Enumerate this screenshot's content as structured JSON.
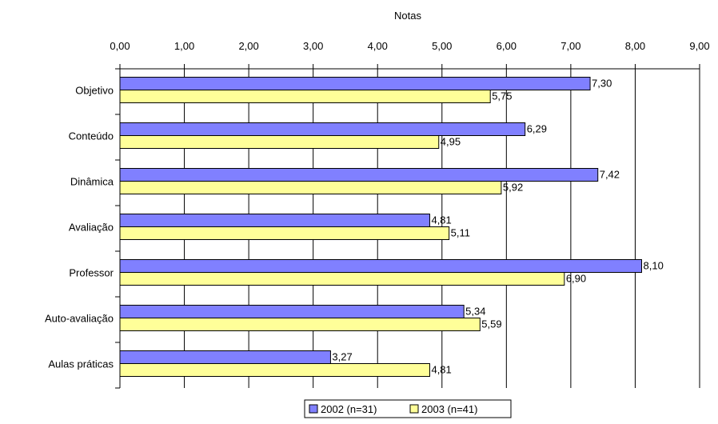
{
  "chart_data": {
    "type": "bar",
    "orientation": "horizontal",
    "title": "",
    "xlabel": "Notas",
    "ylabel": "",
    "xlim": [
      0,
      9
    ],
    "x_ticks": [
      "0,00",
      "1,00",
      "2,00",
      "3,00",
      "4,00",
      "5,00",
      "6,00",
      "7,00",
      "8,00",
      "9,00"
    ],
    "categories": [
      "Objetivo",
      "Conteúdo",
      "Dinâmica",
      "Avaliação",
      "Professor",
      "Auto-avaliação",
      "Aulas práticas"
    ],
    "series": [
      {
        "name": "2002 (n=31)",
        "color": "#8080ff",
        "values": [
          7.3,
          6.29,
          7.42,
          4.81,
          8.1,
          5.34,
          3.27
        ],
        "labels": [
          "7,30",
          "6,29",
          "7,42",
          "4,81",
          "8,10",
          "5,34",
          "3,27"
        ]
      },
      {
        "name": "2003 (n=41)",
        "color": "#ffff99",
        "values": [
          5.75,
          4.95,
          5.92,
          5.11,
          6.9,
          5.59,
          4.81
        ],
        "labels": [
          "5,75",
          "4,95",
          "5,92",
          "5,11",
          "6,90",
          "5,59",
          "4,81"
        ]
      }
    ],
    "grid": true,
    "legend_position": "bottom"
  }
}
